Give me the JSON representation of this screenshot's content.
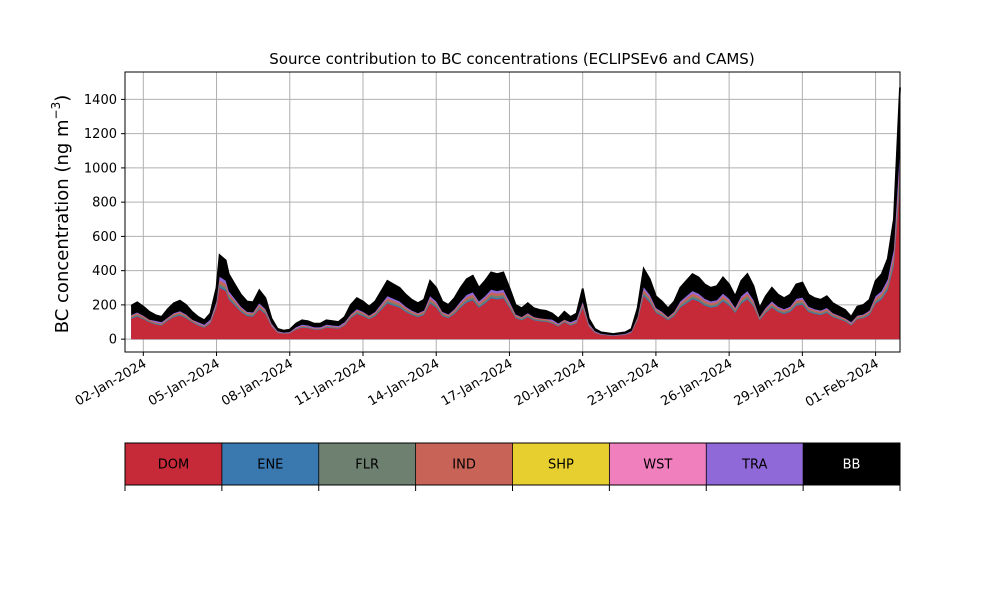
{
  "chart_data": {
    "type": "area",
    "stacked": true,
    "title": "Source contribution to BC concentrations (ECLIPSEv6 and CAMS)",
    "ylabel": "BC concentration (ng m",
    "ylabel_sup": "−3",
    "ylabel_close": ")",
    "xlabel": "",
    "xlim": [
      "2024-01-01T06:00",
      "2024-02-02T00:00"
    ],
    "ylim": [
      -75,
      1560
    ],
    "yticks": [
      0,
      200,
      400,
      600,
      800,
      1000,
      1200,
      1400
    ],
    "xtick_dates": [
      "2024-01-02",
      "2024-01-05",
      "2024-01-08",
      "2024-01-11",
      "2024-01-14",
      "2024-01-17",
      "2024-01-20",
      "2024-01-23",
      "2024-01-26",
      "2024-01-29",
      "2024-02-01"
    ],
    "xticks": [
      "02-Jan-2024",
      "05-Jan-2024",
      "08-Jan-2024",
      "11-Jan-2024",
      "14-Jan-2024",
      "17-Jan-2024",
      "20-Jan-2024",
      "23-Jan-2024",
      "26-Jan-2024",
      "29-Jan-2024",
      "01-Feb-2024"
    ],
    "grid": true,
    "total_points": [
      [
        "2024-01-01T12:00",
        195
      ],
      [
        "2024-01-01T18:00",
        215
      ],
      [
        "2024-01-02T00:00",
        190
      ],
      [
        "2024-01-02T06:00",
        160
      ],
      [
        "2024-01-02T12:00",
        140
      ],
      [
        "2024-01-02T18:00",
        130
      ],
      [
        "2024-01-03T00:00",
        175
      ],
      [
        "2024-01-03T06:00",
        210
      ],
      [
        "2024-01-03T12:00",
        225
      ],
      [
        "2024-01-03T18:00",
        200
      ],
      [
        "2024-01-04T00:00",
        160
      ],
      [
        "2024-01-04T06:00",
        130
      ],
      [
        "2024-01-04T12:00",
        110
      ],
      [
        "2024-01-04T18:00",
        150
      ],
      [
        "2024-01-05T00:00",
        300
      ],
      [
        "2024-01-05T03:00",
        490
      ],
      [
        "2024-01-05T09:00",
        460
      ],
      [
        "2024-01-05T12:00",
        380
      ],
      [
        "2024-01-05T18:00",
        320
      ],
      [
        "2024-01-06T00:00",
        260
      ],
      [
        "2024-01-06T06:00",
        220
      ],
      [
        "2024-01-06T12:00",
        215
      ],
      [
        "2024-01-06T18:00",
        285
      ],
      [
        "2024-01-07T00:00",
        240
      ],
      [
        "2024-01-07T06:00",
        120
      ],
      [
        "2024-01-07T12:00",
        60
      ],
      [
        "2024-01-07T18:00",
        50
      ],
      [
        "2024-01-08T00:00",
        55
      ],
      [
        "2024-01-08T06:00",
        90
      ],
      [
        "2024-01-08T12:00",
        110
      ],
      [
        "2024-01-08T18:00",
        105
      ],
      [
        "2024-01-09T00:00",
        90
      ],
      [
        "2024-01-09T06:00",
        90
      ],
      [
        "2024-01-09T12:00",
        110
      ],
      [
        "2024-01-09T18:00",
        105
      ],
      [
        "2024-01-10T00:00",
        100
      ],
      [
        "2024-01-10T06:00",
        130
      ],
      [
        "2024-01-10T12:00",
        200
      ],
      [
        "2024-01-10T18:00",
        240
      ],
      [
        "2024-01-11T00:00",
        220
      ],
      [
        "2024-01-11T06:00",
        190
      ],
      [
        "2024-01-11T12:00",
        220
      ],
      [
        "2024-01-11T18:00",
        280
      ],
      [
        "2024-01-12T00:00",
        340
      ],
      [
        "2024-01-12T06:00",
        320
      ],
      [
        "2024-01-12T12:00",
        300
      ],
      [
        "2024-01-12T18:00",
        260
      ],
      [
        "2024-01-13T00:00",
        230
      ],
      [
        "2024-01-13T06:00",
        210
      ],
      [
        "2024-01-13T12:00",
        230
      ],
      [
        "2024-01-13T18:00",
        340
      ],
      [
        "2024-01-14T00:00",
        300
      ],
      [
        "2024-01-14T06:00",
        220
      ],
      [
        "2024-01-14T12:00",
        200
      ],
      [
        "2024-01-14T18:00",
        240
      ],
      [
        "2024-01-15T00:00",
        300
      ],
      [
        "2024-01-15T06:00",
        350
      ],
      [
        "2024-01-15T12:00",
        370
      ],
      [
        "2024-01-15T18:00",
        300
      ],
      [
        "2024-01-16T00:00",
        340
      ],
      [
        "2024-01-16T06:00",
        390
      ],
      [
        "2024-01-16T12:00",
        380
      ],
      [
        "2024-01-16T18:00",
        390
      ],
      [
        "2024-01-17T00:00",
        300
      ],
      [
        "2024-01-17T06:00",
        200
      ],
      [
        "2024-01-17T12:00",
        180
      ],
      [
        "2024-01-17T18:00",
        210
      ],
      [
        "2024-01-18T00:00",
        180
      ],
      [
        "2024-01-18T06:00",
        170
      ],
      [
        "2024-01-18T12:00",
        165
      ],
      [
        "2024-01-18T18:00",
        150
      ],
      [
        "2024-01-19T00:00",
        120
      ],
      [
        "2024-01-19T06:00",
        160
      ],
      [
        "2024-01-19T12:00",
        130
      ],
      [
        "2024-01-19T18:00",
        150
      ],
      [
        "2024-01-20T00:00",
        295
      ],
      [
        "2024-01-20T06:00",
        120
      ],
      [
        "2024-01-20T12:00",
        60
      ],
      [
        "2024-01-20T18:00",
        40
      ],
      [
        "2024-01-21T00:00",
        35
      ],
      [
        "2024-01-21T06:00",
        30
      ],
      [
        "2024-01-21T12:00",
        35
      ],
      [
        "2024-01-21T18:00",
        40
      ],
      [
        "2024-01-22T00:00",
        60
      ],
      [
        "2024-01-22T06:00",
        180
      ],
      [
        "2024-01-22T12:00",
        410
      ],
      [
        "2024-01-22T18:00",
        350
      ],
      [
        "2024-01-23T00:00",
        250
      ],
      [
        "2024-01-23T06:00",
        220
      ],
      [
        "2024-01-23T12:00",
        180
      ],
      [
        "2024-01-23T18:00",
        220
      ],
      [
        "2024-01-24T00:00",
        300
      ],
      [
        "2024-01-24T06:00",
        340
      ],
      [
        "2024-01-24T12:00",
        380
      ],
      [
        "2024-01-24T18:00",
        360
      ],
      [
        "2024-01-25T00:00",
        320
      ],
      [
        "2024-01-25T06:00",
        300
      ],
      [
        "2024-01-25T12:00",
        310
      ],
      [
        "2024-01-25T18:00",
        360
      ],
      [
        "2024-01-26T00:00",
        320
      ],
      [
        "2024-01-26T06:00",
        250
      ],
      [
        "2024-01-26T12:00",
        340
      ],
      [
        "2024-01-26T18:00",
        380
      ],
      [
        "2024-01-27T00:00",
        310
      ],
      [
        "2024-01-27T06:00",
        180
      ],
      [
        "2024-01-27T12:00",
        250
      ],
      [
        "2024-01-27T18:00",
        300
      ],
      [
        "2024-01-28T00:00",
        260
      ],
      [
        "2024-01-28T06:00",
        240
      ],
      [
        "2024-01-28T12:00",
        260
      ],
      [
        "2024-01-28T18:00",
        320
      ],
      [
        "2024-01-29T00:00",
        330
      ],
      [
        "2024-01-29T06:00",
        260
      ],
      [
        "2024-01-29T12:00",
        240
      ],
      [
        "2024-01-29T18:00",
        230
      ],
      [
        "2024-01-30T00:00",
        250
      ],
      [
        "2024-01-30T06:00",
        210
      ],
      [
        "2024-01-30T12:00",
        190
      ],
      [
        "2024-01-30T18:00",
        170
      ],
      [
        "2024-01-31T00:00",
        130
      ],
      [
        "2024-01-31T06:00",
        190
      ],
      [
        "2024-01-31T12:00",
        200
      ],
      [
        "2024-01-31T18:00",
        230
      ],
      [
        "2024-02-01T00:00",
        340
      ],
      [
        "2024-02-01T06:00",
        380
      ],
      [
        "2024-02-01T12:00",
        470
      ],
      [
        "2024-02-01T18:00",
        700
      ],
      [
        "2024-02-02T00:00",
        1470
      ]
    ],
    "legend": [
      {
        "name": "DOM",
        "color": "#c62a38"
      },
      {
        "name": "ENE",
        "color": "#3a78b0"
      },
      {
        "name": "FLR",
        "color": "#6e8070"
      },
      {
        "name": "IND",
        "color": "#c86457"
      },
      {
        "name": "SHP",
        "color": "#e6cf2e"
      },
      {
        "name": "WST",
        "color": "#f07fbd"
      },
      {
        "name": "TRA",
        "color": "#9069d8"
      },
      {
        "name": "BB",
        "color": "#000000"
      }
    ]
  }
}
